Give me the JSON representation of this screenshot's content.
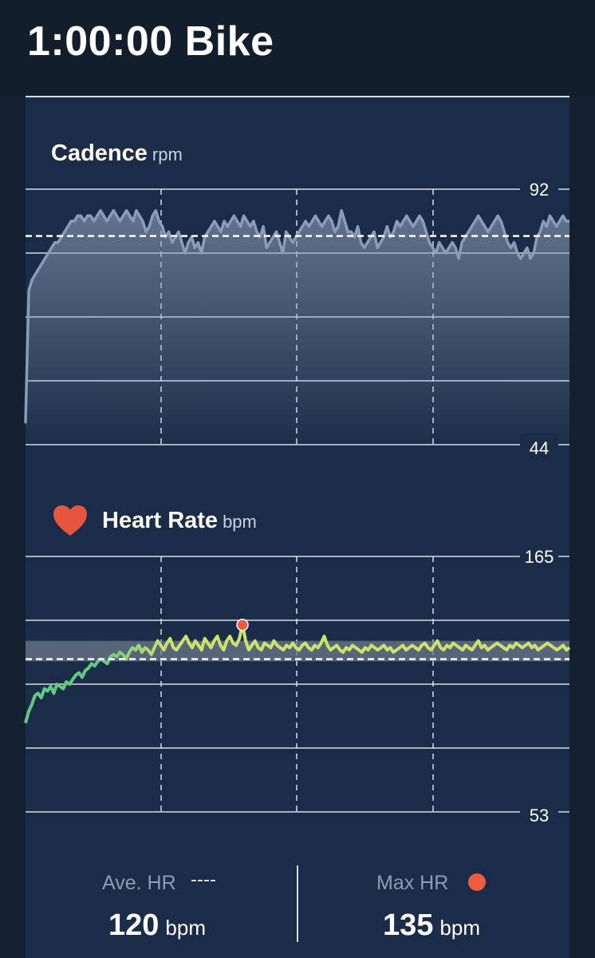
{
  "header": {
    "title": "1:00:00 Bike"
  },
  "cadence": {
    "title": "Cadence",
    "unit": "rpm",
    "axis_max_label": "92",
    "axis_min_label": "44"
  },
  "heart_rate": {
    "title": "Heart Rate",
    "unit": "bpm",
    "axis_max_label": "165",
    "axis_min_label": "53",
    "icon": "heart-icon"
  },
  "footer": {
    "ave_hr_label": "Ave. HR",
    "ave_hr_value": "120",
    "ave_hr_unit": "bpm",
    "max_hr_label": "Max HR",
    "max_hr_value": "135",
    "max_hr_unit": "bpm"
  },
  "colors": {
    "background": "#13202f",
    "card": "#1a2c47",
    "cadence_line": "#8b9bb8",
    "hr_low": "#63c880",
    "hr_high": "#cce36a",
    "max_marker": "#ef5c3e"
  },
  "chart_data": [
    {
      "type": "line",
      "title": "Cadence",
      "ylabel": "rpm",
      "ylim": [
        44,
        92
      ],
      "duration": "1:00:00",
      "average": 83.2,
      "series": [
        {
          "values": [
            48,
            73,
            75,
            76,
            77,
            78,
            79,
            80,
            81,
            82,
            82,
            83,
            84,
            85,
            86,
            86,
            87,
            87,
            86,
            87,
            87,
            86,
            87,
            88,
            87,
            86,
            87,
            88,
            87,
            86,
            87,
            88,
            87,
            86,
            88,
            87,
            86,
            84,
            85,
            87,
            88,
            86,
            85,
            83,
            84,
            82,
            83,
            84,
            82,
            80,
            82,
            83,
            81,
            82,
            80,
            83,
            84,
            85,
            86,
            85,
            84,
            86,
            85,
            86,
            87,
            86,
            85,
            87,
            86,
            85,
            86,
            84,
            83,
            85,
            81,
            82,
            83,
            84,
            82,
            80,
            84,
            83,
            82,
            83,
            84,
            85,
            86,
            85,
            86,
            87,
            86,
            85,
            86,
            87,
            86,
            84,
            85,
            88,
            86,
            84,
            84,
            83,
            85,
            82,
            81,
            82,
            83,
            84,
            81,
            82,
            83,
            85,
            83,
            84,
            86,
            85,
            86,
            87,
            86,
            85,
            86,
            87,
            86,
            84,
            82,
            81,
            80,
            82,
            81,
            80,
            81,
            82,
            81,
            79,
            82,
            83,
            84,
            85,
            86,
            87,
            86,
            85,
            84,
            85,
            86,
            87,
            86,
            84,
            82,
            81,
            82,
            80,
            79,
            80,
            81,
            79,
            80,
            83,
            84,
            86,
            85,
            87,
            86,
            85,
            86,
            87,
            86,
            86
          ]
        }
      ]
    },
    {
      "type": "line",
      "title": "Heart Rate",
      "ylabel": "bpm",
      "ylim": [
        53,
        165
      ],
      "duration": "1:00:00",
      "average": 120,
      "max": 135,
      "series": [
        {
          "values": [
            92,
            97,
            100,
            104,
            105,
            103,
            107,
            106,
            108,
            105,
            109,
            108,
            107,
            110,
            109,
            111,
            113,
            114,
            112,
            115,
            116,
            118,
            117,
            119,
            120,
            119,
            118,
            121,
            122,
            121,
            123,
            122,
            120,
            123,
            125,
            124,
            126,
            123,
            125,
            124,
            122,
            125,
            128,
            126,
            124,
            127,
            129,
            125,
            124,
            126,
            128,
            130,
            127,
            125,
            128,
            126,
            124,
            129,
            127,
            125,
            128,
            130,
            126,
            124,
            128,
            130,
            127,
            126,
            129,
            135,
            128,
            124,
            126,
            128,
            125,
            124,
            127,
            126,
            125,
            128,
            126,
            125,
            124,
            126,
            125,
            127,
            125,
            124,
            126,
            127,
            125,
            124,
            126,
            125,
            127,
            130,
            126,
            124,
            125,
            126,
            124,
            123,
            125,
            124,
            126,
            125,
            124,
            123,
            125,
            124,
            126,
            125,
            124,
            125,
            126,
            124,
            125,
            123,
            124,
            125,
            126,
            124,
            125,
            126,
            125,
            124,
            126,
            127,
            125,
            124,
            126,
            128,
            125,
            124,
            126,
            125,
            127,
            126,
            125,
            124,
            126,
            125,
            124,
            126,
            128,
            125,
            126,
            124,
            125,
            126,
            127,
            126,
            125,
            124,
            126,
            125,
            127,
            126,
            125,
            126,
            127,
            125,
            126,
            124,
            125,
            126,
            127,
            126,
            125,
            124,
            125,
            126,
            124,
            125
          ]
        }
      ]
    }
  ]
}
